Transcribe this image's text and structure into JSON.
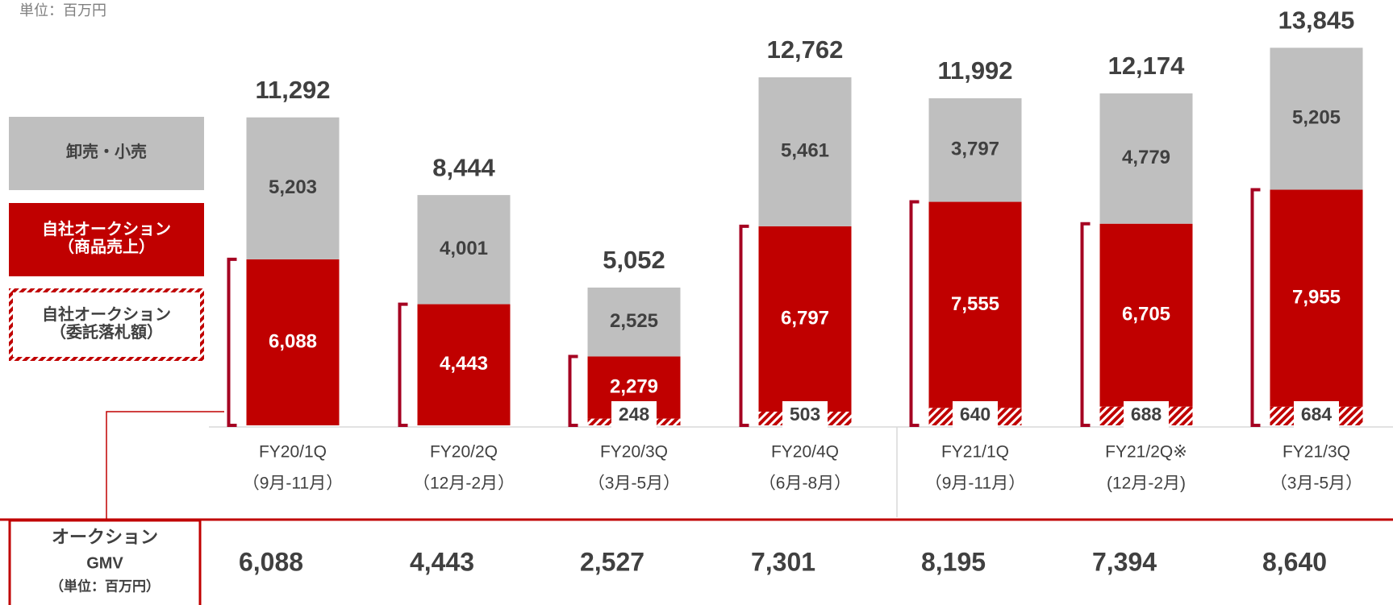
{
  "unit_note": "単位：百万円",
  "chart_data": {
    "type": "stacked-bar",
    "categories": [
      "FY20/1Q",
      "FY20/2Q",
      "FY20/3Q",
      "FY20/4Q",
      "FY21/1Q",
      "FY21/2Q※",
      "FY21/3Q"
    ],
    "periods": [
      "（9月-11月）",
      "（12月-2月）",
      "（3月-5月）",
      "（6月-8月）",
      "（9月-11月）",
      "(12月-2月)",
      "（3月-5月）"
    ],
    "series": [
      {
        "name": "自社オークション（委託落札額）",
        "color": "#c00000",
        "pattern": "hatch",
        "values": [
          null,
          null,
          248,
          503,
          640,
          688,
          684
        ]
      },
      {
        "name": "自社オークション（商品売上）",
        "color": "#c00000",
        "values": [
          6088,
          4443,
          2279,
          6797,
          7555,
          6705,
          7955
        ]
      },
      {
        "name": "卸売・小売",
        "color": "#bfbfbf",
        "values": [
          5203,
          4001,
          2525,
          5461,
          3797,
          4779,
          5205
        ]
      }
    ],
    "totals": [
      11292,
      8444,
      5052,
      12762,
      11992,
      12174,
      13845
    ],
    "value_labels": {
      "series0": [
        null,
        null,
        "248",
        "503",
        "640",
        "688",
        "684"
      ],
      "series1": [
        "6,088",
        "4,443",
        "2,279",
        "6,797",
        "7,555",
        "6,705",
        "7,955"
      ],
      "series2": [
        "5,203",
        "4,001",
        "2,525",
        "5,461",
        "3,797",
        "4,779",
        "5,205"
      ],
      "totals": [
        "11,292",
        "8,444",
        "5,052",
        "12,762",
        "11,992",
        "12,174",
        "13,845"
      ]
    },
    "ylim": [
      0,
      14000
    ]
  },
  "table": {
    "header": [
      "オークション",
      "GMV",
      "（単位：百万円）"
    ],
    "values": [
      6088,
      4443,
      2527,
      7301,
      8195,
      7394,
      8640
    ],
    "value_labels": [
      "6,088",
      "4,443",
      "2,527",
      "7,301",
      "8,195",
      "7,394",
      "8,640"
    ]
  }
}
